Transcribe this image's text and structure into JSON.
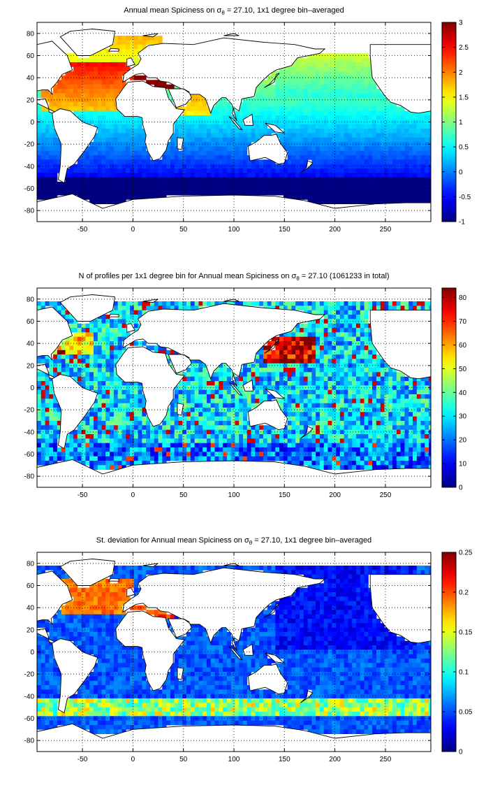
{
  "panels": [
    {
      "title_pre": "Annual mean Spiciness on σ",
      "title_sub": "θ",
      "title_post": " = 27.10, 1x1 degree bin–averaged",
      "colorbar_ticks": [
        "3",
        "2.5",
        "2",
        "1.5",
        "1",
        "0.5",
        "0",
        "-0.5",
        "-1"
      ],
      "colorbar_range": [
        -1,
        3
      ],
      "field": "spice"
    },
    {
      "title_pre": "N of profiles per 1x1 degree bin for Annual mean Spiciness on σ",
      "title_sub": "θ",
      "title_post": " = 27.10 (1061233 in total)",
      "colorbar_ticks": [
        "80",
        "70",
        "60",
        "50",
        "40",
        "30",
        "20",
        "10",
        "0"
      ],
      "colorbar_range": [
        0,
        84
      ],
      "field": "count"
    },
    {
      "title_pre": "St. deviation for Annual mean Spiciness on σ",
      "title_sub": "θ",
      "title_post": " = 27.10, 1x1 degree bin–averaged",
      "colorbar_ticks": [
        "0.25",
        "0.2",
        "0.15",
        "0.1",
        "0.05",
        "0"
      ],
      "colorbar_range": [
        0,
        0.25
      ],
      "field": "std"
    }
  ],
  "map": {
    "x_ticks": [
      "-50",
      "0",
      "50",
      "100",
      "150",
      "200",
      "250"
    ],
    "y_ticks": [
      "80",
      "60",
      "40",
      "20",
      "0",
      "-20",
      "-40",
      "-60",
      "-80"
    ],
    "lon_range": [
      -95,
      295
    ],
    "lat_range": [
      -90,
      90
    ]
  },
  "colors": {
    "background": "#ffffff",
    "land": "#ffffff",
    "coast": "#000000"
  },
  "colormap": "jet"
}
